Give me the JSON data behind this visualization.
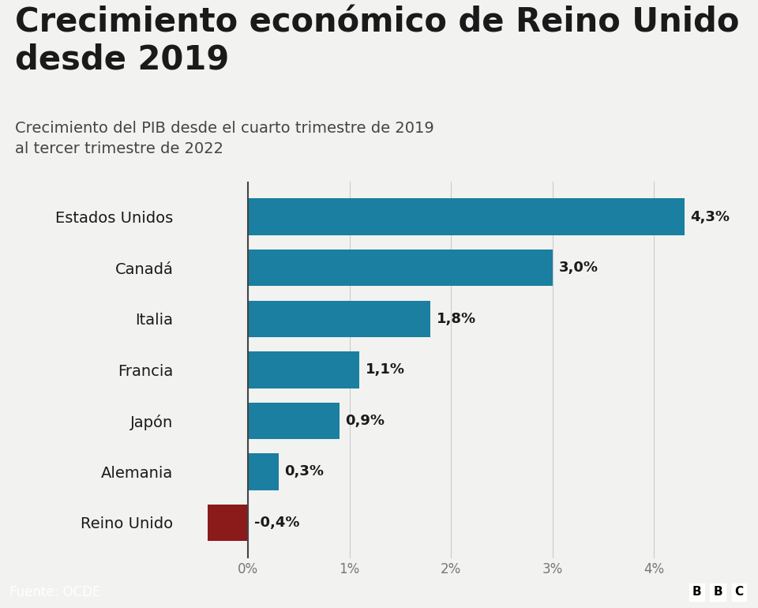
{
  "title": "Crecimiento económico de Reino Unido\ndesde 2019",
  "subtitle": "Crecimiento del PIB desde el cuarto trimestre de 2019\nal tercer trimestre de 2022",
  "categories": [
    "Estados Unidos",
    "Canadá",
    "Italia",
    "Francia",
    "Japón",
    "Alemania",
    "Reino Unido"
  ],
  "values": [
    4.3,
    3.0,
    1.8,
    1.1,
    0.9,
    0.3,
    -0.4
  ],
  "labels": [
    "4,3%",
    "3,0%",
    "1,8%",
    "1,1%",
    "0,9%",
    "0,3%",
    "-0,4%"
  ],
  "bar_color_positive": "#1a7fa0",
  "bar_color_negative": "#8b1a1a",
  "background_color": "#f2f2f0",
  "footer_bg": "#1a1a1a",
  "footer_text": "Fuente: OCDE",
  "footer_logo": "BBC",
  "title_fontsize": 30,
  "subtitle_fontsize": 14,
  "label_fontsize": 13,
  "ytick_fontsize": 14,
  "xtick_fontsize": 12,
  "xlim": [
    -0.65,
    4.8
  ],
  "xticks": [
    0,
    1,
    2,
    3,
    4
  ],
  "xticklabels": [
    "0%",
    "1%",
    "2%",
    "3%",
    "4%"
  ],
  "bar_height": 0.72
}
